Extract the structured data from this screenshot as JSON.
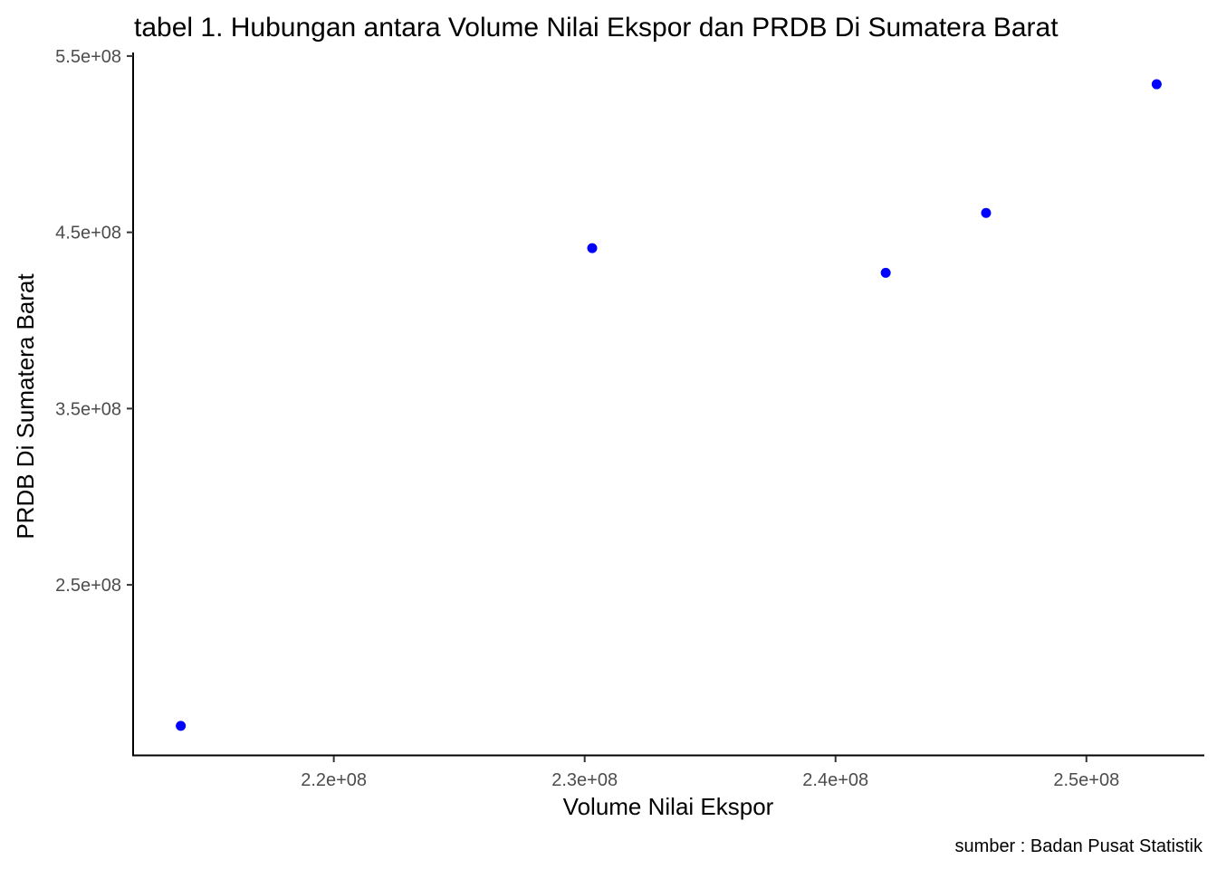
{
  "chart_data": {
    "type": "scatter",
    "title": "tabel 1. Hubungan antara Volume Nilai Ekspor dan PRDB Di Sumatera Barat",
    "xlabel": "Volume Nilai Ekspor",
    "ylabel": "PRDB Di Sumatera Barat",
    "caption": "sumber : Badan Pusat Statistik",
    "xlim": [
      212000000,
      254700000
    ],
    "ylim": [
      153000000,
      552000000
    ],
    "x_ticks": [
      220000000,
      230000000,
      240000000,
      250000000
    ],
    "x_tick_labels": [
      "2.2e+08",
      "2.3e+08",
      "2.4e+08",
      "2.5e+08"
    ],
    "y_ticks": [
      250000000,
      350000000,
      450000000,
      550000000
    ],
    "y_tick_labels": [
      "2.5e+08",
      "3.5e+08",
      "4.5e+08",
      "5.5e+08"
    ],
    "grid": false,
    "point_color": "#0000ff",
    "series": [
      {
        "x": [
          213900000,
          230300000,
          242000000,
          246000000,
          252800000
        ],
        "y": [
          170000000,
          441000000,
          427000000,
          461000000,
          534000000
        ]
      }
    ]
  }
}
